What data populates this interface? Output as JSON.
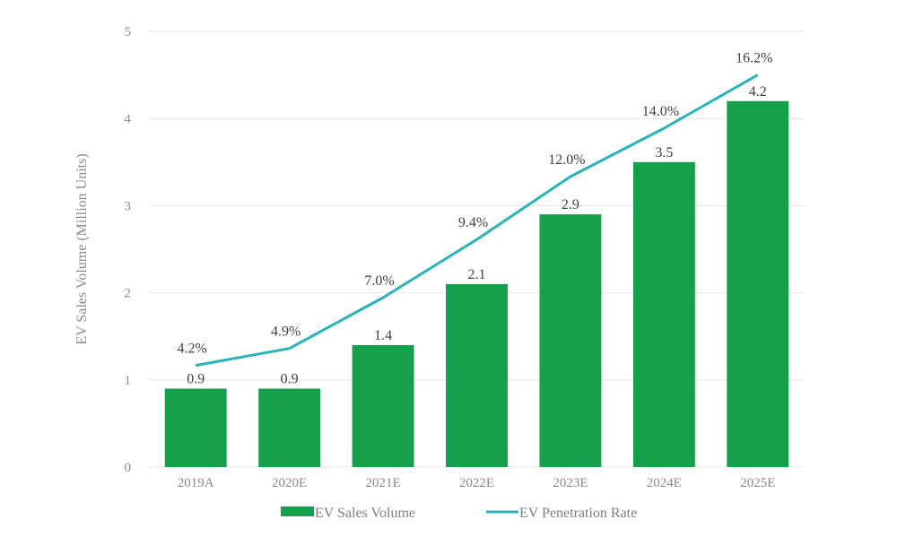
{
  "chart_data": {
    "type": "bar",
    "title": "",
    "xlabel": "",
    "ylabel": "EV Sales Volume (Million Units)",
    "ylim": [
      0,
      5
    ],
    "yticks": [
      0,
      1,
      2,
      3,
      4,
      5
    ],
    "y2lim": [
      0,
      18
    ],
    "y2_visible": false,
    "grid": true,
    "legend_position": "bottom",
    "categories": [
      "2019A",
      "2020E",
      "2021E",
      "2022E",
      "2023E",
      "2024E",
      "2025E"
    ],
    "series": [
      {
        "name": "EV Sales Volume",
        "type": "bar",
        "axis": "primary",
        "color": "#16a04c",
        "values": [
          0.9,
          0.9,
          1.4,
          2.1,
          2.9,
          3.5,
          4.2
        ],
        "labels": [
          "0.9",
          "0.9",
          "1.4",
          "2.1",
          "2.9",
          "3.5",
          "4.2"
        ]
      },
      {
        "name": "EV Penetration Rate",
        "type": "line",
        "axis": "secondary",
        "unit": "%",
        "color": "#2ab3b8",
        "values": [
          4.2,
          4.9,
          7.0,
          9.4,
          12.0,
          14.0,
          16.2
        ],
        "labels": [
          "4.2%",
          "4.9%",
          "7.0%",
          "9.4%",
          "12.0%",
          "14.0%",
          "16.2%"
        ]
      }
    ]
  }
}
